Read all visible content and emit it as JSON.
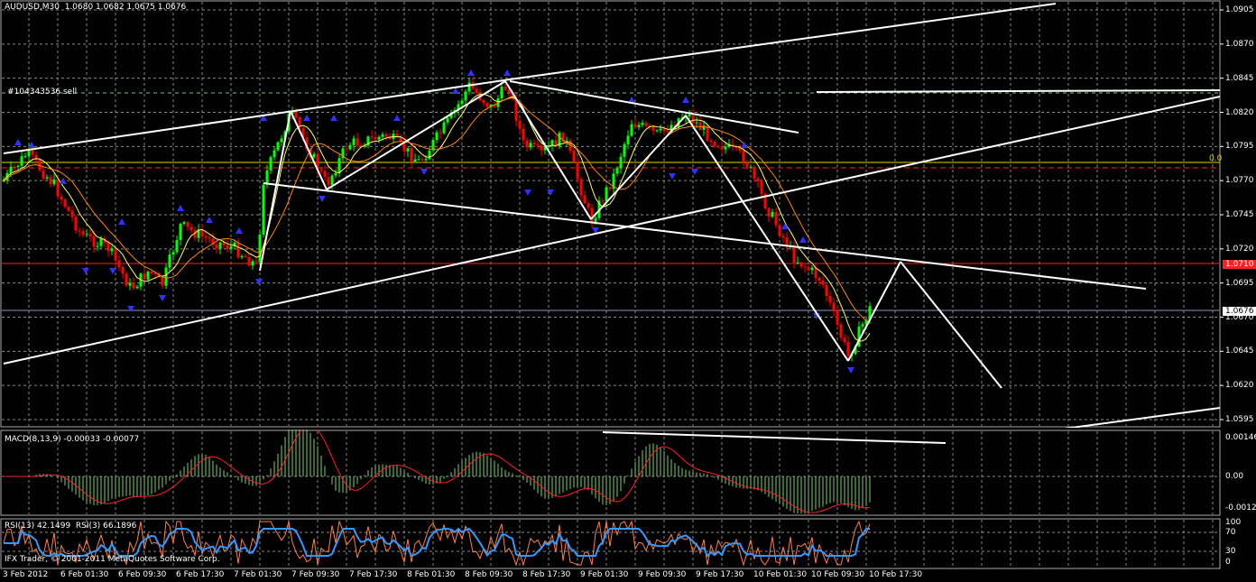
{
  "main": {
    "header": "AUDUSD,M30  1.0680 1.0682 1.0675 1.0676",
    "order_label": "#104343536 sell",
    "fib_label": "0.0",
    "y_labels": [
      "1.0905",
      "1.0870",
      "1.0845",
      "1.0820",
      "1.0795",
      "1.0770",
      "1.0745",
      "1.0720",
      "1.0695",
      "1.0670",
      "1.0645",
      "1.0620",
      "1.0595"
    ],
    "price_tag": "1.0676",
    "red_tag": "1.0710"
  },
  "macd": {
    "header": "MACD(8,13,9) -0.00033 -0.00077",
    "y_labels": [
      "0.00146",
      "0.00",
      "-0.00122"
    ]
  },
  "rsi": {
    "header": "RSI(13) 42.1499  RSI(3) 66.1896",
    "y_labels": [
      "100",
      "70",
      "30",
      "0"
    ],
    "copyright": "IFX Trader, © 2001-2011 MetaQuotes Software Corp."
  },
  "x_labels": [
    "3 Feb 2012",
    "6 Feb 01:30",
    "6 Feb 09:30",
    "6 Feb 17:30",
    "7 Feb 01:30",
    "7 Feb 09:30",
    "7 Feb 17:30",
    "8 Feb 01:30",
    "8 Feb 09:30",
    "8 Feb 17:30",
    "9 Feb 01:30",
    "9 Feb 09:30",
    "9 Feb 17:30",
    "10 Feb 01:30",
    "10 Feb 09:30",
    "10 Feb 17:30"
  ],
  "colors": {
    "bull": "#00ff00",
    "bear": "#ff0000",
    "fractal": "#3030ff",
    "grid": "#8a8a8a",
    "ma_fast": "#ffff66",
    "ma_slow": "#ff8800",
    "macd_hist": "#7fd06a",
    "macd_signal": "#ff2020",
    "rsi13": "#3399ff",
    "rsi3": "#ff8040"
  }
}
